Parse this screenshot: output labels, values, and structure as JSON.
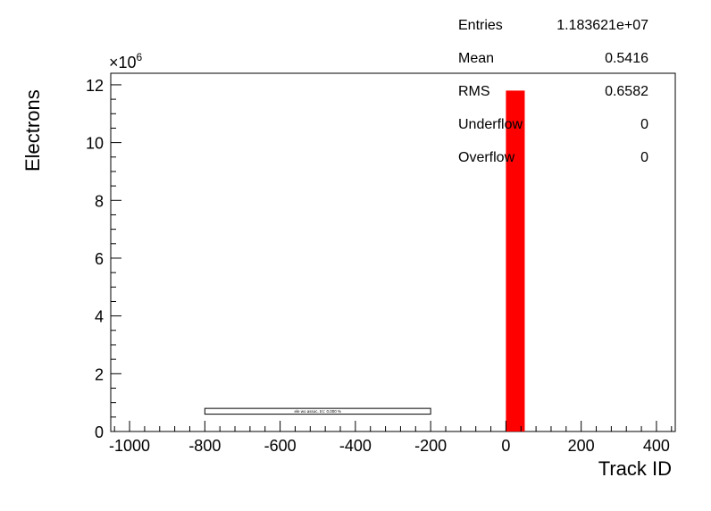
{
  "stats": [
    {
      "label": "Entries",
      "value": "1.183621e+07"
    },
    {
      "label": "Mean",
      "value": "0.5416"
    },
    {
      "label": "RMS",
      "value": "0.6582"
    },
    {
      "label": "Underflow",
      "value": "0"
    },
    {
      "label": "Overflow",
      "value": "0"
    }
  ],
  "chart_data": {
    "type": "bar",
    "xlabel": "Track ID",
    "ylabel": "Electrons",
    "y_multiplier": "×10",
    "y_multiplier_exp": "6",
    "xlim": [
      -1050,
      450
    ],
    "ylim": [
      0,
      12.4
    ],
    "x_ticks": [
      -1000,
      -800,
      -600,
      -400,
      -200,
      0,
      200,
      400
    ],
    "y_ticks": [
      0,
      2,
      4,
      6,
      8,
      10,
      12
    ],
    "bins": [
      {
        "x0": 0,
        "x1": 50,
        "value": 11.8
      }
    ],
    "bar_color": "#ff0000",
    "legend_box": {
      "x0": -800,
      "x1": -200,
      "y0": 0.6,
      "y1": 0.8,
      "text": "ele wo assoc. trc: 0.000 %"
    },
    "grid": false
  }
}
